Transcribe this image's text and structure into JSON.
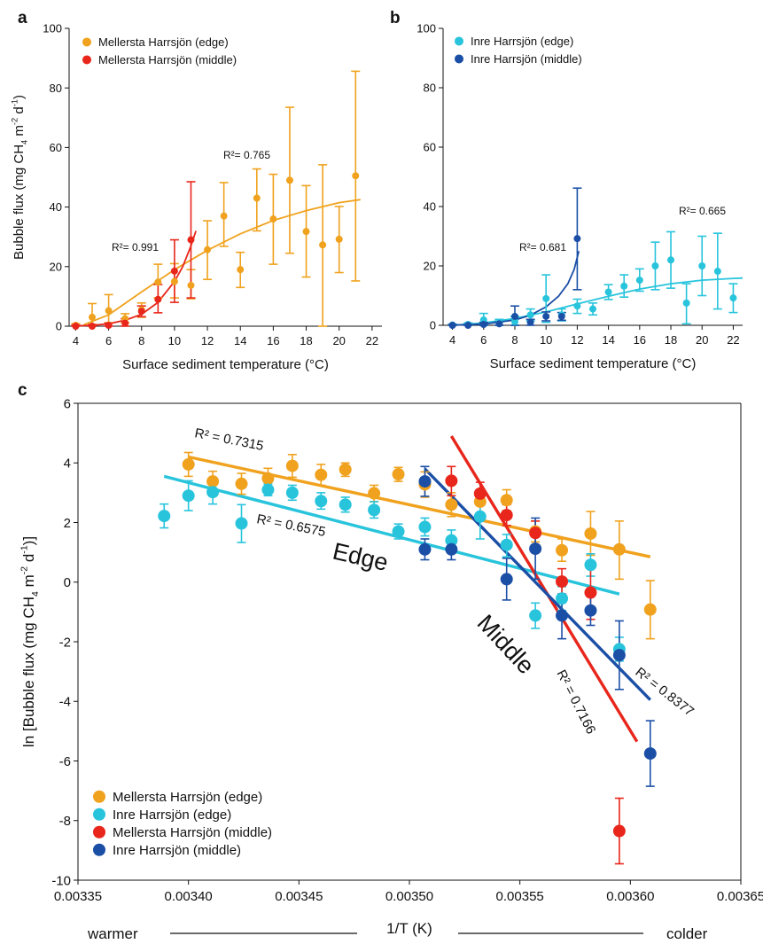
{
  "figure": {
    "panel_labels": [
      "a",
      "b",
      "c"
    ]
  },
  "chart_data": [
    {
      "panel": "a",
      "type": "scatter",
      "ylabel": "Bubble flux (mg CH₄ m⁻² d⁻¹)",
      "ylabel_parts": {
        "main": "Bubble flux (mg CH",
        "sub": "4",
        "mid": " m",
        "sup1": "-2",
        "mid2": " d",
        "sup2": "-1",
        "end": ")"
      },
      "xlabel": "Surface sediment temperature (°C)",
      "xlim": [
        3.6,
        22.6
      ],
      "ylim": [
        0,
        100
      ],
      "xticks": [
        "4",
        "6",
        "8",
        "10",
        "12",
        "14",
        "16",
        "18",
        "20",
        "22"
      ],
      "yticks": [
        "0",
        "20",
        "40",
        "60",
        "80",
        "100"
      ],
      "legend": "top-left",
      "series": [
        {
          "name": "Mellersta Harrsjön (edge)",
          "color": "#F0A21E",
          "points": [
            [
              4,
              0.3,
              0.3,
              0.8
            ],
            [
              5,
              3,
              0.6,
              7.6
            ],
            [
              6,
              5.2,
              1.2,
              10.6
            ],
            [
              7,
              2.5,
              1.2,
              4.2
            ],
            [
              8,
              5.5,
              3,
              7.8
            ],
            [
              9,
              14.8,
              9.5,
              20.8
            ],
            [
              10,
              15,
              9.5,
              21
            ],
            [
              11,
              13.7,
              9.2,
              19
            ],
            [
              12,
              25.7,
              15.7,
              35.4
            ],
            [
              13,
              37,
              26.8,
              48.2
            ],
            [
              14,
              19,
              13,
              24.8
            ],
            [
              15,
              43,
              32,
              52.8
            ],
            [
              16,
              36,
              20.8,
              51
            ],
            [
              17,
              49,
              24.5,
              73.5
            ],
            [
              18,
              31.8,
              16.5,
              47.2
            ],
            [
              19,
              27.3,
              0,
              54.2
            ],
            [
              20,
              29.2,
              18,
              40.2
            ],
            [
              21,
              50.5,
              15.2,
              85.6
            ]
          ],
          "fit": {
            "r2_label": "R²= 0.765",
            "x": [
              4.5,
              6,
              8,
              10,
              12,
              14,
              16,
              18,
              20,
              21.3
            ],
            "y": [
              0.5,
              3.8,
              11.5,
              19,
              25.5,
              31,
              35.5,
              38.8,
              41.5,
              42.5
            ]
          }
        },
        {
          "name": "Mellersta Harrsjön (middle)",
          "color": "#E8261B",
          "points": [
            [
              4,
              0,
              0,
              0.4
            ],
            [
              5,
              0,
              0,
              0.5
            ],
            [
              6,
              0.3,
              0,
              1
            ],
            [
              7,
              1,
              0,
              2.5
            ],
            [
              8,
              5,
              3.2,
              6.8
            ],
            [
              9,
              9,
              4.5,
              14
            ],
            [
              10,
              18.5,
              8,
              29
            ],
            [
              11,
              29,
              9.5,
              48.5
            ]
          ],
          "fit": {
            "r2_label": "R²= 0.991",
            "x": [
              4,
              5,
              6,
              7,
              8,
              9,
              10,
              10.5,
              11,
              11.3
            ],
            "y": [
              0.1,
              0.3,
              0.8,
              2,
              4,
              8,
              15,
              20,
              27,
              32
            ]
          }
        }
      ]
    },
    {
      "panel": "b",
      "type": "scatter",
      "xlabel": "Surface sediment temperature (°C)",
      "xlim": [
        3.4,
        22.6
      ],
      "ylim": [
        0,
        100
      ],
      "xticks": [
        "4",
        "6",
        "8",
        "10",
        "12",
        "14",
        "16",
        "18",
        "20",
        "22"
      ],
      "yticks": [
        "0",
        "20",
        "40",
        "60",
        "80",
        "100"
      ],
      "legend": "top-left",
      "series": [
        {
          "name": "Inre Harrsjön (edge)",
          "color": "#28C4DC",
          "points": [
            [
              4,
              0.1,
              0,
              0.4
            ],
            [
              5,
              0.3,
              0,
              0.8
            ],
            [
              6,
              1.8,
              0,
              4
            ],
            [
              7,
              0.8,
              0,
              2
            ],
            [
              8,
              1.2,
              0,
              3
            ],
            [
              9,
              3.5,
              1.5,
              5.5
            ],
            [
              10,
              9,
              1,
              17
            ],
            [
              11,
              3.5,
              1.5,
              5.5
            ],
            [
              12,
              6.5,
              4,
              8.8
            ],
            [
              13,
              5.5,
              3.5,
              7.5
            ],
            [
              14,
              11.2,
              8.7,
              13.7
            ],
            [
              15,
              13.2,
              9.5,
              17
            ],
            [
              16,
              15.2,
              11.5,
              19
            ],
            [
              17,
              20,
              12,
              28
            ],
            [
              18,
              22,
              12.5,
              31.5
            ],
            [
              19,
              7.5,
              0.5,
              14
            ],
            [
              20,
              20,
              10,
              30
            ],
            [
              21,
              18.2,
              5.5,
              31
            ],
            [
              22,
              9.2,
              4.3,
              14
            ]
          ],
          "fit": {
            "r2_label": "R²= 0.665",
            "x": [
              4,
              6,
              8,
              10,
              12,
              14,
              16,
              18,
              20,
              22,
              22.6
            ],
            "y": [
              0,
              0.8,
              2.3,
              4.5,
              7.2,
              9.8,
              12.2,
              14,
              15.2,
              15.8,
              15.9
            ]
          }
        },
        {
          "name": "Inre Harrsjön (middle)",
          "color": "#1B4FA6",
          "points": [
            [
              4,
              0,
              0,
              0.3
            ],
            [
              5,
              0,
              0,
              0.3
            ],
            [
              6,
              0.3,
              0,
              1
            ],
            [
              7,
              0.5,
              0,
              1.2
            ],
            [
              8,
              3,
              0,
              6.5
            ],
            [
              9,
              1,
              0,
              2
            ],
            [
              10,
              3,
              1.5,
              4.5
            ],
            [
              11,
              3,
              1.7,
              4.3
            ],
            [
              12,
              29.2,
              12,
              46.2
            ]
          ],
          "fit": {
            "r2_label": "R²= 0.681",
            "x": [
              4,
              6,
              8,
              9,
              10,
              10.8,
              11.4,
              11.8,
              12.1
            ],
            "y": [
              0.05,
              0.4,
              1.8,
              3.4,
              6.2,
              9.8,
              14,
              18.8,
              25
            ]
          }
        }
      ]
    },
    {
      "panel": "c",
      "type": "scatter",
      "ylabel": "ln [Bubble flux (mg CH₄ m⁻² d⁻¹)]",
      "ylabel_parts": {
        "main": "ln [Bubble flux (mg CH",
        "sub": "4",
        "mid": " m",
        "sup1": "-2",
        "mid2": " d",
        "sup2": "-1",
        "end": ")]"
      },
      "xlabel": "1/T (K)",
      "axis_left_note": "warmer",
      "axis_right_note": "colder",
      "xlim": [
        0.00335,
        0.00365
      ],
      "ylim": [
        -10,
        6
      ],
      "xticks": [
        "0.00335",
        "0.00340",
        "0.00345",
        "0.00350",
        "0.00355",
        "0.00360",
        "0.00365"
      ],
      "yticks": [
        "6",
        "4",
        "2",
        "0",
        "-2",
        "-4",
        "-6",
        "-8",
        "-10"
      ],
      "legend": "bottom-left",
      "annotations": {
        "edge": "Edge",
        "middle": "Middle"
      },
      "series": [
        {
          "name": "Mellersta Harrsjön (edge)",
          "color": "#F0A21E",
          "points": [
            [
              0.0034,
              3.95,
              3.55,
              4.35
            ],
            [
              0.003411,
              3.38,
              3.05,
              3.72
            ],
            [
              0.003424,
              3.3,
              2.95,
              3.65
            ],
            [
              0.003436,
              3.48,
              3.13,
              3.82
            ],
            [
              0.003447,
              3.9,
              3.52,
              4.28
            ],
            [
              0.00346,
              3.6,
              3.25,
              3.95
            ],
            [
              0.003471,
              3.78,
              3.55,
              4.0
            ],
            [
              0.003484,
              2.98,
              2.7,
              3.25
            ],
            [
              0.003495,
              3.62,
              3.38,
              3.85
            ],
            [
              0.003507,
              3.28,
              2.85,
              3.7
            ],
            [
              0.003519,
              2.6,
              2.2,
              3.0
            ],
            [
              0.003532,
              2.7,
              2.3,
              3.1
            ],
            [
              0.003544,
              2.75,
              2.4,
              3.1
            ],
            [
              0.003557,
              1.7,
              1.35,
              2.05
            ],
            [
              0.003569,
              1.07,
              0.7,
              1.45
            ],
            [
              0.003582,
              1.63,
              0.9,
              2.37
            ],
            [
              0.003595,
              1.1,
              0.1,
              2.05
            ],
            [
              0.003609,
              -0.92,
              -1.9,
              0.05
            ]
          ],
          "fit": {
            "r2_label": "R² = 0.7315",
            "x": [
              0.0034,
              0.003609
            ],
            "y": [
              4.2,
              0.85
            ]
          }
        },
        {
          "name": "Inre Harrsjön (edge)",
          "color": "#28C4DC",
          "points": [
            [
              0.003389,
              2.22,
              1.82,
              2.62
            ],
            [
              0.0034,
              2.9,
              2.4,
              3.4
            ],
            [
              0.003411,
              3.02,
              2.62,
              3.42
            ],
            [
              0.003424,
              1.97,
              1.33,
              2.6
            ],
            [
              0.003436,
              3.1,
              2.9,
              3.3
            ],
            [
              0.003447,
              3.0,
              2.75,
              3.25
            ],
            [
              0.00346,
              2.72,
              2.45,
              3.0
            ],
            [
              0.003471,
              2.6,
              2.35,
              2.85
            ],
            [
              0.003484,
              2.42,
              2.15,
              2.7
            ],
            [
              0.003495,
              1.7,
              1.45,
              1.95
            ],
            [
              0.003507,
              1.85,
              1.55,
              2.15
            ],
            [
              0.003519,
              1.4,
              1.05,
              1.75
            ],
            [
              0.003532,
              2.2,
              1.45,
              2.95
            ],
            [
              0.003544,
              1.25,
              0.85,
              1.6
            ],
            [
              0.003557,
              -1.12,
              -1.55,
              -0.7
            ],
            [
              0.003569,
              -0.55,
              -0.95,
              -0.15
            ],
            [
              0.003582,
              0.58,
              0.2,
              0.95
            ],
            [
              0.003595,
              -2.25,
              -2.65,
              -1.85
            ]
          ],
          "fit": {
            "r2_label": "R² = 0.6575",
            "x": [
              0.003389,
              0.003595
            ],
            "y": [
              3.55,
              -0.4
            ]
          }
        },
        {
          "name": "Mellersta Harrsjön (middle)",
          "color": "#E8261B",
          "points": [
            [
              0.003519,
              3.4,
              2.9,
              3.88
            ],
            [
              0.003532,
              2.97,
              2.58,
              3.35
            ],
            [
              0.003544,
              2.25,
              1.9,
              2.6
            ],
            [
              0.003557,
              1.65,
              1.25,
              2.05
            ],
            [
              0.003569,
              0.02,
              -0.4,
              0.45
            ],
            [
              0.003582,
              -0.35,
              -1.25,
              0.55
            ],
            [
              0.003595,
              -8.35,
              -9.45,
              -7.25
            ]
          ],
          "fit": {
            "r2_label": "R² = 0.7166",
            "x": [
              0.003519,
              0.003603
            ],
            "y": [
              4.9,
              -5.35
            ]
          }
        },
        {
          "name": "Inre Harrsjön (middle)",
          "color": "#1B4FA6",
          "points": [
            [
              0.003507,
              3.38,
              2.88,
              3.88
            ],
            [
              0.003507,
              1.1,
              0.75,
              1.45
            ],
            [
              0.003519,
              1.1,
              0.75,
              1.45
            ],
            [
              0.003544,
              0.1,
              -0.6,
              0.8
            ],
            [
              0.003557,
              1.12,
              0.1,
              2.15
            ],
            [
              0.003569,
              -1.12,
              -1.9,
              -0.4
            ],
            [
              0.003582,
              -0.95,
              -1.45,
              -0.45
            ],
            [
              0.003595,
              -2.45,
              -3.6,
              -1.3
            ],
            [
              0.003609,
              -5.75,
              -6.85,
              -4.65
            ]
          ],
          "fit": {
            "r2_label": "R² = 0.8377",
            "x": [
              0.003507,
              0.003609
            ],
            "y": [
              3.8,
              -3.95
            ]
          }
        }
      ]
    }
  ]
}
